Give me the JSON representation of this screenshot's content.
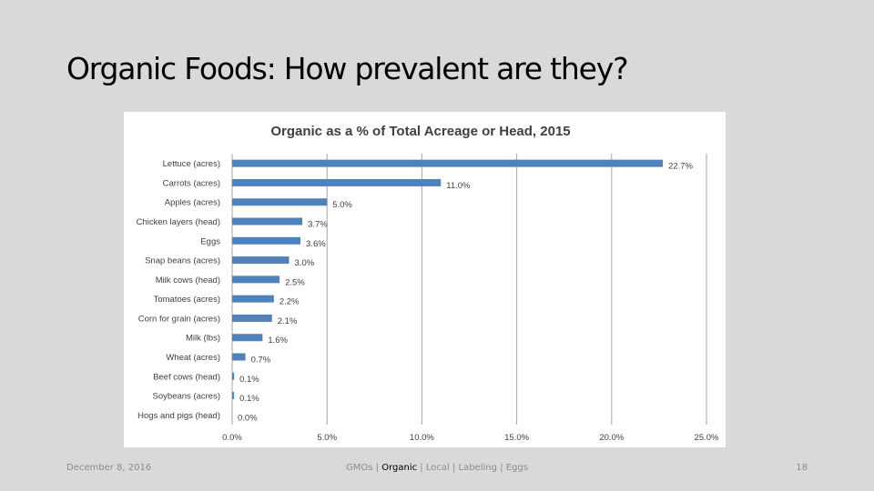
{
  "slide": {
    "title": "Organic Foods: How prevalent are they?"
  },
  "footer": {
    "date": "December 8, 2016",
    "nav": [
      {
        "label": "GMOs",
        "active": false
      },
      {
        "label": "Organic",
        "active": true
      },
      {
        "label": "Local",
        "active": false
      },
      {
        "label": "Labeling",
        "active": false
      },
      {
        "label": "Eggs",
        "active": false
      }
    ],
    "separator": " | ",
    "page_number": "18"
  },
  "chart_data": {
    "type": "bar",
    "orientation": "horizontal",
    "title": "Organic as a % of Total Acreage or Head, 2015",
    "categories": [
      "Lettuce (acres)",
      "Carrots (acres)",
      "Apples (acres)",
      "Chicken layers (head)",
      "Eggs",
      "Snap beans (acres)",
      "Milk cows (head)",
      "Tomatoes (acres)",
      "Corn for grain (acres)",
      "Milk (lbs)",
      "Wheat (acres)",
      "Beef cows (head)",
      "Soybeans (acres)",
      "Hogs and pigs (head)"
    ],
    "values": [
      22.7,
      11.0,
      5.0,
      3.7,
      3.6,
      3.0,
      2.5,
      2.2,
      2.1,
      1.6,
      0.7,
      0.1,
      0.1,
      0.0
    ],
    "value_labels": [
      "22.7%",
      "11.0%",
      "5.0%",
      "3.7%",
      "3.6%",
      "3.0%",
      "2.5%",
      "2.2%",
      "2.1%",
      "1.6%",
      "0.7%",
      "0.1%",
      "0.1%",
      "0.0%"
    ],
    "xlim": [
      0,
      25
    ],
    "xticks": [
      0,
      5,
      10,
      15,
      20,
      25
    ],
    "xtick_labels": [
      "0.0%",
      "5.0%",
      "10.0%",
      "15.0%",
      "20.0%",
      "25.0%"
    ],
    "xlabel": "",
    "ylabel": "",
    "grid": "vertical",
    "legend": "none",
    "bar_color": "#4f81bd",
    "grid_color": "#a6a6a6"
  }
}
